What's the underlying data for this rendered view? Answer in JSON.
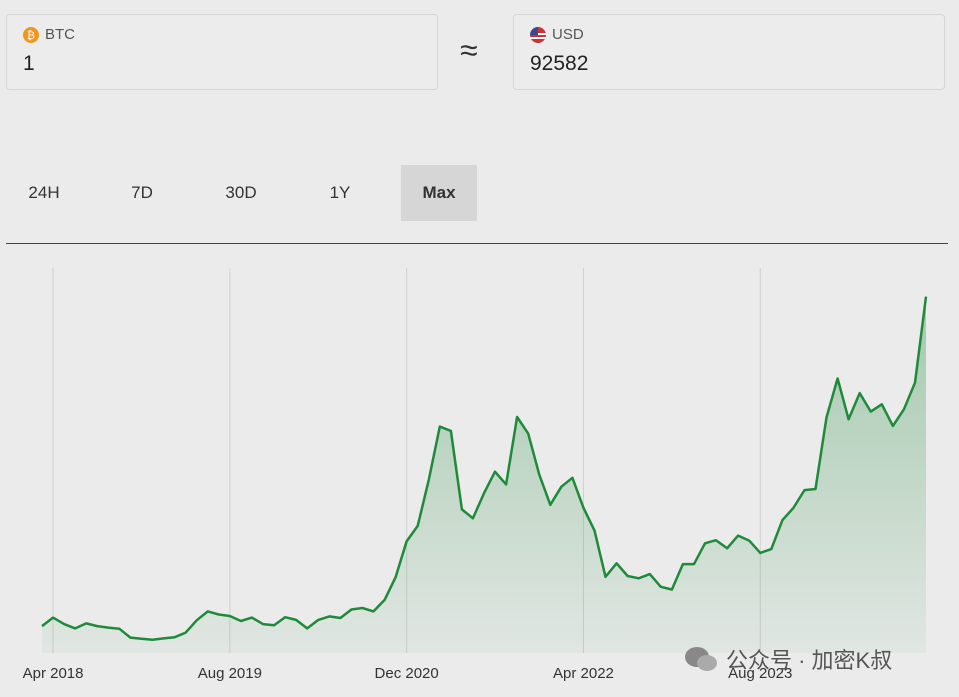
{
  "converter": {
    "from": {
      "currency": "BTC",
      "amount": 1
    },
    "approx": "≈",
    "to": {
      "currency": "USD",
      "amount": 92582
    }
  },
  "tabs": [
    "24H",
    "7D",
    "30D",
    "1Y",
    "Max"
  ],
  "active_tab": "Max",
  "chart_data": {
    "type": "area",
    "color": "#1e8a3a",
    "x": [
      "2018-03",
      "2018-04",
      "2018-05",
      "2018-06",
      "2018-07",
      "2018-08",
      "2018-09",
      "2018-10",
      "2018-11",
      "2018-12",
      "2019-01",
      "2019-02",
      "2019-03",
      "2019-04",
      "2019-05",
      "2019-06",
      "2019-07",
      "2019-08",
      "2019-09",
      "2019-10",
      "2019-11",
      "2019-12",
      "2020-01",
      "2020-02",
      "2020-03",
      "2020-04",
      "2020-05",
      "2020-06",
      "2020-07",
      "2020-08",
      "2020-09",
      "2020-10",
      "2020-11",
      "2020-12",
      "2021-01",
      "2021-02",
      "2021-03",
      "2021-04",
      "2021-05",
      "2021-06",
      "2021-07",
      "2021-08",
      "2021-09",
      "2021-10",
      "2021-11",
      "2021-12",
      "2022-01",
      "2022-02",
      "2022-03",
      "2022-04",
      "2022-05",
      "2022-06",
      "2022-07",
      "2022-08",
      "2022-09",
      "2022-10",
      "2022-11",
      "2022-12",
      "2023-01",
      "2023-02",
      "2023-03",
      "2023-04",
      "2023-05",
      "2023-06",
      "2023-07",
      "2023-08",
      "2023-09",
      "2023-10",
      "2023-11",
      "2023-12",
      "2024-01",
      "2024-02",
      "2024-03",
      "2024-04",
      "2024-05",
      "2024-06",
      "2024-07",
      "2024-08",
      "2024-09",
      "2024-10",
      "2024-11"
    ],
    "values": [
      7000,
      9200,
      7500,
      6400,
      7700,
      7000,
      6600,
      6300,
      4000,
      3700,
      3450,
      3800,
      4100,
      5300,
      8500,
      10800,
      10000,
      9600,
      8300,
      9200,
      7500,
      7200,
      9300,
      8600,
      6400,
      8600,
      9500,
      9100,
      11300,
      11700,
      10800,
      13800,
      19700,
      29000,
      33000,
      45000,
      58800,
      57700,
      37300,
      35000,
      41500,
      47100,
      43800,
      61300,
      57000,
      46300,
      38500,
      43200,
      45500,
      37700,
      31800,
      19800,
      23300,
      20000,
      19400,
      20500,
      17200,
      16500,
      23100,
      23100,
      28500,
      29300,
      27200,
      30500,
      29200,
      26000,
      27000,
      34500,
      37700,
      42300,
      42600,
      61200,
      71300,
      60700,
      67500,
      62700,
      64600,
      59000,
      63300,
      70200,
      92582
    ],
    "xlim": [
      "2018-03",
      "2024-11"
    ],
    "xticks": [
      {
        "value": "2018-04",
        "label": "Apr 2018"
      },
      {
        "value": "2019-08",
        "label": "Aug 2019"
      },
      {
        "value": "2020-12",
        "label": "Dec 2020"
      },
      {
        "value": "2022-04",
        "label": "Apr 2022"
      },
      {
        "value": "2023-08",
        "label": "Aug 2023"
      }
    ],
    "ylim": [
      0,
      100000
    ],
    "grid": true
  },
  "watermark": "公众号 · 加密K叔"
}
